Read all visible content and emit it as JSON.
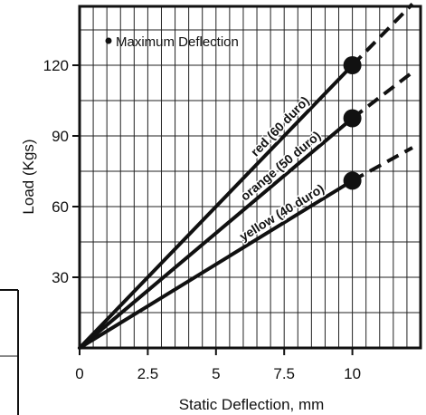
{
  "chart_data": {
    "type": "line",
    "title": "",
    "xlabel": "Static Deflection, mm",
    "ylabel": "Load (Kgs)",
    "xlim": [
      0,
      12.5
    ],
    "ylim": [
      0,
      145
    ],
    "x_ticks": [
      0,
      2.5,
      5,
      7.5,
      10
    ],
    "x_tick_labels": [
      "0",
      "2.5",
      "5",
      "7.5",
      "10"
    ],
    "y_ticks": [
      30,
      60,
      90,
      120
    ],
    "y_tick_labels": [
      "30",
      "60",
      "90",
      "120"
    ],
    "grid": true,
    "legend": {
      "entries": [
        "Maximum Deflection"
      ],
      "placement": "top-left",
      "marker": "filled-circle"
    },
    "series": [
      {
        "name": "red (60 duro)",
        "x": [
          0,
          10
        ],
        "y": [
          0,
          120
        ],
        "max_deflection": [
          10,
          120
        ],
        "extension_to": [
          12.2,
          146
        ]
      },
      {
        "name": "orange (50 duro)",
        "x": [
          0,
          10
        ],
        "y": [
          0,
          97.5
        ],
        "max_deflection": [
          10,
          97.5
        ],
        "extension_to": [
          12.2,
          117
        ]
      },
      {
        "name": "yellow (40 duro)",
        "x": [
          0,
          10
        ],
        "y": [
          0,
          71
        ],
        "max_deflection": [
          10,
          71
        ],
        "extension_to": [
          12.2,
          85
        ]
      }
    ]
  },
  "colors": {
    "line": "#111111",
    "grid": "#222222",
    "background": "#ffffff"
  }
}
